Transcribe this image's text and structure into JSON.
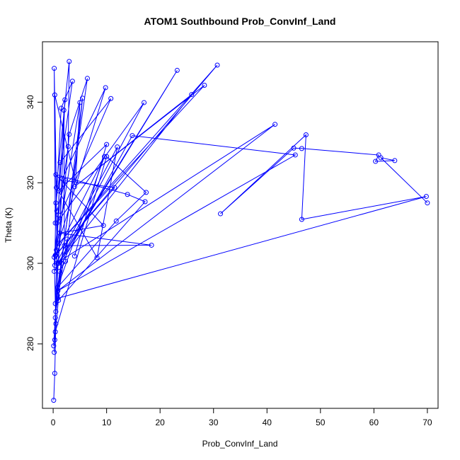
{
  "chart_data": {
    "type": "line",
    "title": "ATOM1 Southbound Prob_ConvInf_Land",
    "xlabel": "Prob_ConvInf_Land",
    "ylabel": "Theta (K)",
    "xlim": [
      -2,
      72
    ],
    "ylim": [
      264,
      355
    ],
    "xticks": [
      0,
      10,
      20,
      30,
      40,
      50,
      60,
      70
    ],
    "yticks": [
      280,
      300,
      320,
      340
    ],
    "grid": false,
    "legend": "none",
    "series_color": "#0000ff",
    "series": [
      {
        "x": [
          0.1,
          0.3,
          0.5,
          0.2,
          1.0,
          2.8,
          3.0,
          0.6,
          0.2,
          0.4,
          1.5,
          3.6,
          0.5,
          0.3,
          2.2,
          1.0
        ],
        "y": [
          266.0,
          272.7,
          285.0,
          301.5,
          312.0,
          329.0,
          350.1,
          318.8,
          348.4,
          310.0,
          338.5,
          345.2,
          315.0,
          299.5,
          340.6,
          300.0
        ]
      },
      {
        "x": [
          0.2,
          0.4,
          1.2,
          2.3,
          5.5,
          0.8,
          0.3,
          4.2,
          5.0,
          0.6,
          9.8,
          1.7,
          0.5,
          2.6
        ],
        "y": [
          277.9,
          286.5,
          298.0,
          300.5,
          341.0,
          292.0,
          341.8,
          320.2,
          339.9,
          303.3,
          343.6,
          321.0,
          288.0,
          306.0
        ]
      },
      {
        "x": [
          0.1,
          0.9,
          3.0,
          6.4,
          0.4,
          1.3,
          10.8,
          0.7,
          17.0,
          0.2,
          23.2,
          0.9,
          25.9,
          4.0,
          28.3,
          1.1,
          30.7,
          0.5
        ],
        "y": [
          279.5,
          300.0,
          332.0,
          345.9,
          290.0,
          325.0,
          340.9,
          310.0,
          339.9,
          298.0,
          347.9,
          300.0,
          341.9,
          319.0,
          344.2,
          305.0,
          349.2,
          302.0
        ]
      },
      {
        "x": [
          0.3,
          1.6,
          14.8,
          45.3,
          0.9,
          41.5,
          0.6,
          12.0,
          8.2,
          1.0,
          10.0,
          4.0
        ],
        "y": [
          281.0,
          300.0,
          331.7,
          326.9,
          293.2,
          334.5,
          300.0,
          328.9,
          301.4,
          318.0,
          329.5,
          301.8
        ]
      },
      {
        "x": [
          1.0,
          17.2,
          13.9,
          0.5,
          9.4,
          1.2,
          18.4,
          2.1,
          2.0
        ],
        "y": [
          290.8,
          315.3,
          317.1,
          322.0,
          309.4,
          307.5,
          304.5,
          304.4,
          338.0
        ]
      },
      {
        "x": [
          0.4,
          10.0,
          17.4,
          11.8,
          0.8,
          9.6,
          0.4,
          11.5,
          2.3,
          0.7
        ],
        "y": [
          283.0,
          326.5,
          317.6,
          310.5,
          294.0,
          326.5,
          302.0,
          318.8,
          320.5,
          313.0
        ]
      },
      {
        "x": [
          0.8,
          69.8,
          46.5,
          47.3,
          31.3,
          45.0,
          46.5,
          60.9,
          60.3,
          63.9,
          61.3,
          70.0
        ],
        "y": [
          291.3,
          316.6,
          310.9,
          331.9,
          312.3,
          328.6,
          328.5,
          326.9,
          325.3,
          325.5,
          326.2,
          315.0
        ]
      }
    ]
  }
}
